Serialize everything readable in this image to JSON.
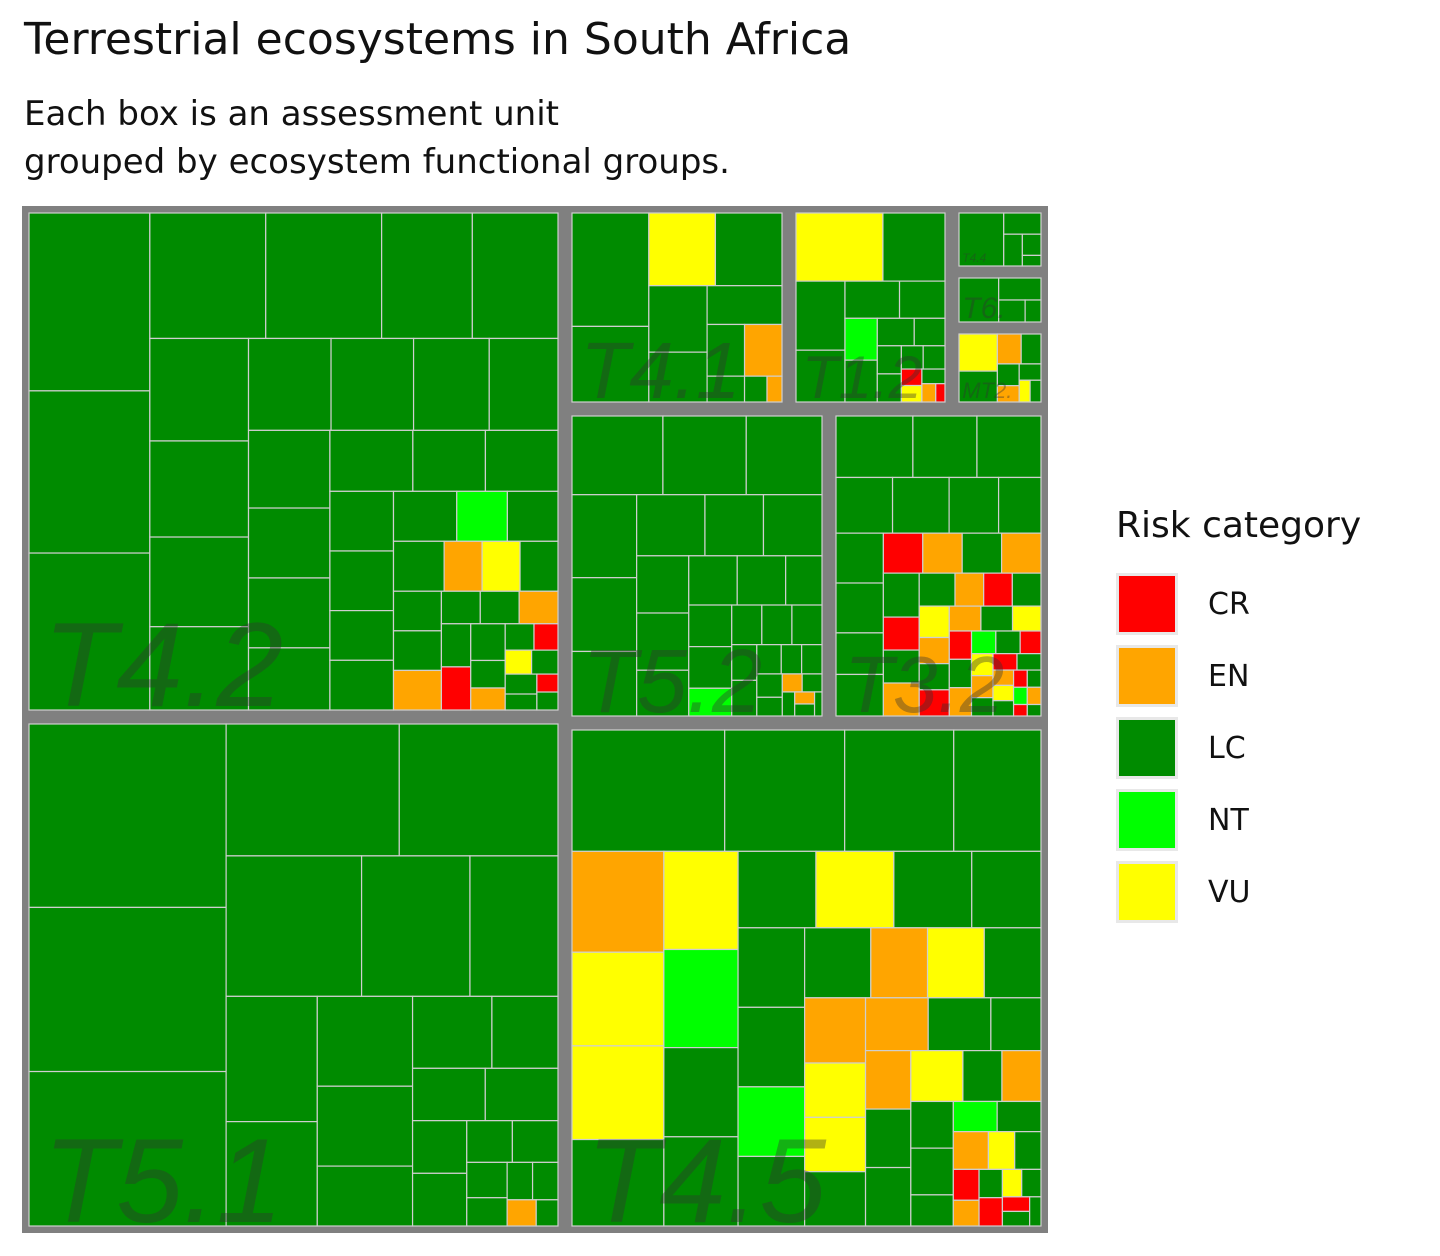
{
  "chart_data": {
    "type": "treemap",
    "title": "Terrestrial ecosystems in South Africa",
    "subtitle": [
      "Each box is an assessment unit",
      "grouped by ecosystem functional groups."
    ],
    "legend": {
      "title": "Risk category",
      "placement": "right",
      "items": [
        {
          "key": "CR",
          "label": "CR",
          "color": "#ff0000"
        },
        {
          "key": "EN",
          "label": "EN",
          "color": "#ffa500"
        },
        {
          "key": "LC",
          "label": "LC",
          "color": "#008b00"
        },
        {
          "key": "NT",
          "label": "NT",
          "color": "#00ff00"
        },
        {
          "key": "VU",
          "label": "VU",
          "color": "#ffff00"
        }
      ]
    },
    "border_color": "#808080",
    "groups": [
      {
        "name": "T4.2",
        "units": [
          [
            "LC",
            34
          ],
          [
            "LC",
            31
          ],
          [
            "LC",
            30
          ],
          [
            "LC",
            23
          ],
          [
            "LC",
            23
          ],
          [
            "LC",
            18
          ],
          [
            "LC",
            17
          ],
          [
            "LC",
            16
          ],
          [
            "LC",
            15
          ],
          [
            "LC",
            14
          ],
          [
            "LC",
            13
          ],
          [
            "LC",
            12
          ],
          [
            "LC",
            12
          ],
          [
            "LC",
            11
          ],
          [
            "LC",
            10
          ],
          [
            "LC",
            10
          ],
          [
            "LC",
            9
          ],
          [
            "LC",
            9
          ],
          [
            "LC",
            8
          ],
          [
            "LC",
            8
          ],
          [
            "LC",
            7
          ],
          [
            "LC",
            7
          ],
          [
            "LC",
            6
          ],
          [
            "LC",
            6
          ],
          [
            "LC",
            5
          ],
          [
            "LC",
            5
          ],
          [
            "LC",
            5
          ],
          [
            "NT",
            4
          ],
          [
            "LC",
            4
          ],
          [
            "LC",
            4
          ],
          [
            "EN",
            3
          ],
          [
            "VU",
            3
          ],
          [
            "LC",
            3
          ],
          [
            "LC",
            3
          ],
          [
            "LC",
            3
          ],
          [
            "EN",
            3
          ],
          [
            "LC",
            2
          ],
          [
            "LC",
            2
          ],
          [
            "EN",
            2
          ],
          [
            "LC",
            2
          ],
          [
            "CR",
            2
          ],
          [
            "LC",
            2
          ],
          [
            "LC",
            1.5
          ],
          [
            "EN",
            1.2
          ],
          [
            "LC",
            1.2
          ],
          [
            "CR",
            1
          ],
          [
            "VU",
            1
          ],
          [
            "LC",
            1
          ],
          [
            "LC",
            1
          ],
          [
            "LC",
            0.8
          ],
          [
            "CR",
            0.6
          ],
          [
            "LC",
            0.6
          ]
        ]
      },
      {
        "name": "T5.1",
        "units": [
          [
            "LC",
            38
          ],
          [
            "LC",
            34
          ],
          [
            "LC",
            32
          ],
          [
            "LC",
            24
          ],
          [
            "LC",
            22
          ],
          [
            "LC",
            20
          ],
          [
            "LC",
            16
          ],
          [
            "LC",
            13
          ],
          [
            "LC",
            12
          ],
          [
            "LC",
            10
          ],
          [
            "LC",
            9
          ],
          [
            "LC",
            8
          ],
          [
            "LC",
            6
          ],
          [
            "LC",
            6
          ],
          [
            "LC",
            5
          ],
          [
            "LC",
            4
          ],
          [
            "LC",
            4
          ],
          [
            "LC",
            3
          ],
          [
            "LC",
            3
          ],
          [
            "LC",
            2
          ],
          [
            "LC",
            2
          ],
          [
            "LC",
            1.5
          ],
          [
            "LC",
            1.2
          ],
          [
            "LC",
            1
          ],
          [
            "LC",
            1
          ],
          [
            "EN",
            0.8
          ],
          [
            "LC",
            0.6
          ]
        ]
      },
      {
        "name": "T4.5",
        "units": [
          [
            "LC",
            28
          ],
          [
            "LC",
            22
          ],
          [
            "LC",
            20
          ],
          [
            "LC",
            16
          ],
          [
            "EN",
            14
          ],
          [
            "VU",
            13
          ],
          [
            "VU",
            13
          ],
          [
            "LC",
            12
          ],
          [
            "VU",
            11
          ],
          [
            "NT",
            11
          ],
          [
            "LC",
            10
          ],
          [
            "LC",
            10
          ],
          [
            "LC",
            9
          ],
          [
            "VU",
            9
          ],
          [
            "LC",
            9
          ],
          [
            "LC",
            8
          ],
          [
            "LC",
            8
          ],
          [
            "LC",
            8
          ],
          [
            "NT",
            7
          ],
          [
            "LC",
            7
          ],
          [
            "LC",
            7
          ],
          [
            "EN",
            6
          ],
          [
            "VU",
            6
          ],
          [
            "LC",
            6
          ],
          [
            "EN",
            6
          ],
          [
            "VU",
            5
          ],
          [
            "VU",
            5
          ],
          [
            "LC",
            5
          ],
          [
            "EN",
            5
          ],
          [
            "LC",
            5
          ],
          [
            "LC",
            4
          ],
          [
            "EN",
            4
          ],
          [
            "LC",
            4
          ],
          [
            "LC",
            4
          ],
          [
            "VU",
            4
          ],
          [
            "LC",
            3
          ],
          [
            "EN",
            3
          ],
          [
            "LC",
            3
          ],
          [
            "LC",
            3
          ],
          [
            "LC",
            2
          ],
          [
            "NT",
            2
          ],
          [
            "LC",
            2
          ],
          [
            "EN",
            2
          ],
          [
            "VU",
            1.5
          ],
          [
            "LC",
            1.5
          ],
          [
            "CR",
            1.2
          ],
          [
            "EN",
            1
          ],
          [
            "LC",
            1
          ],
          [
            "CR",
            1
          ],
          [
            "VU",
            0.8
          ],
          [
            "LC",
            0.8
          ],
          [
            "CR",
            0.6
          ],
          [
            "LC",
            0.6
          ],
          [
            "LC",
            0.5
          ]
        ]
      },
      {
        "name": "T5.2",
        "units": [
          [
            "LC",
            12
          ],
          [
            "LC",
            11
          ],
          [
            "LC",
            10
          ],
          [
            "LC",
            9
          ],
          [
            "LC",
            8
          ],
          [
            "LC",
            7
          ],
          [
            "LC",
            7
          ],
          [
            "LC",
            6
          ],
          [
            "LC",
            6
          ],
          [
            "LC",
            5
          ],
          [
            "LC",
            5
          ],
          [
            "LC",
            4
          ],
          [
            "LC",
            4
          ],
          [
            "LC",
            4
          ],
          [
            "LC",
            3
          ],
          [
            "LC",
            3
          ],
          [
            "LC",
            3
          ],
          [
            "NT",
            2
          ],
          [
            "LC",
            2
          ],
          [
            "LC",
            2
          ],
          [
            "LC",
            2
          ],
          [
            "LC",
            1.5
          ],
          [
            "LC",
            1.5
          ],
          [
            "LC",
            1.2
          ],
          [
            "LC",
            1
          ],
          [
            "LC",
            1
          ],
          [
            "LC",
            1
          ],
          [
            "LC",
            0.8
          ],
          [
            "EN",
            0.6
          ],
          [
            "LC",
            0.6
          ],
          [
            "LC",
            0.5
          ],
          [
            "EN",
            0.4
          ],
          [
            "LC",
            0.4
          ],
          [
            "LC",
            0.3
          ]
        ]
      },
      {
        "name": "T3.2",
        "units": [
          [
            "LC",
            6
          ],
          [
            "LC",
            5
          ],
          [
            "LC",
            5
          ],
          [
            "LC",
            4
          ],
          [
            "LC",
            4
          ],
          [
            "LC",
            3.5
          ],
          [
            "LC",
            3
          ],
          [
            "LC",
            3
          ],
          [
            "LC",
            3
          ],
          [
            "LC",
            2.5
          ],
          [
            "LC",
            2.5
          ],
          [
            "CR",
            2
          ],
          [
            "EN",
            2
          ],
          [
            "LC",
            2
          ],
          [
            "EN",
            2
          ],
          [
            "LC",
            2
          ],
          [
            "CR",
            1.5
          ],
          [
            "LC",
            1.5
          ],
          [
            "EN",
            1.5
          ],
          [
            "LC",
            1.5
          ],
          [
            "EN",
            1.2
          ],
          [
            "CR",
            1.2
          ],
          [
            "LC",
            1.2
          ],
          [
            "VU",
            1.2
          ],
          [
            "EN",
            1
          ],
          [
            "LC",
            1
          ],
          [
            "CR",
            1
          ],
          [
            "EN",
            1
          ],
          [
            "LC",
            1
          ],
          [
            "VU",
            0.9
          ],
          [
            "CR",
            0.8
          ],
          [
            "LC",
            0.8
          ],
          [
            "EN",
            0.8
          ],
          [
            "NT",
            0.7
          ],
          [
            "LC",
            0.7
          ],
          [
            "CR",
            0.6
          ],
          [
            "VU",
            0.6
          ],
          [
            "EN",
            0.6
          ],
          [
            "LC",
            0.5
          ],
          [
            "CR",
            0.5
          ],
          [
            "LC",
            0.5
          ],
          [
            "EN",
            0.4
          ],
          [
            "VU",
            0.4
          ],
          [
            "LC",
            0.4
          ],
          [
            "CR",
            0.3
          ],
          [
            "LC",
            0.3
          ],
          [
            "NT",
            0.3
          ],
          [
            "EN",
            0.3
          ],
          [
            "CR",
            0.2
          ],
          [
            "LC",
            0.2
          ]
        ]
      },
      {
        "name": "T4.1",
        "units": [
          [
            "LC",
            9
          ],
          [
            "LC",
            6
          ],
          [
            "VU",
            5
          ],
          [
            "LC",
            5
          ],
          [
            "LC",
            4
          ],
          [
            "LC",
            3
          ],
          [
            "LC",
            3
          ],
          [
            "LC",
            2
          ],
          [
            "EN",
            2
          ],
          [
            "LC",
            1
          ],
          [
            "LC",
            0.6
          ],
          [
            "EN",
            0.4
          ]
        ]
      },
      {
        "name": "T1.2",
        "units": [
          [
            "VU",
            3.5
          ],
          [
            "LC",
            2.5
          ],
          [
            "LC",
            2
          ],
          [
            "LC",
            1.5
          ],
          [
            "LC",
            1.2
          ],
          [
            "LC",
            1
          ],
          [
            "NT",
            0.8
          ],
          [
            "LC",
            0.8
          ],
          [
            "LC",
            0.6
          ],
          [
            "LC",
            0.5
          ],
          [
            "LC",
            0.4
          ],
          [
            "LC",
            0.4
          ],
          [
            "LC",
            0.3
          ],
          [
            "LC",
            0.3
          ],
          [
            "CR",
            0.2
          ],
          [
            "VU",
            0.2
          ],
          [
            "LC",
            0.2
          ],
          [
            "EN",
            0.15
          ],
          [
            "CR",
            0.1
          ]
        ]
      },
      {
        "name": "MT2.",
        "units": [
          [
            "VU",
            1.2
          ],
          [
            "LC",
            1
          ],
          [
            "EN",
            0.6
          ],
          [
            "LC",
            0.5
          ],
          [
            "LC",
            0.4
          ],
          [
            "EN",
            0.3
          ],
          [
            "LC",
            0.3
          ],
          [
            "VU",
            0.2
          ],
          [
            "LC",
            0.2
          ]
        ]
      },
      {
        "name": "T6.",
        "units": [
          [
            "LC",
            1.5
          ],
          [
            "LC",
            0.8
          ],
          [
            "LC",
            0.5
          ],
          [
            "LC",
            0.3
          ]
        ]
      },
      {
        "name": "T4.4",
        "units": [
          [
            "LC",
            1.2
          ],
          [
            "LC",
            0.4
          ],
          [
            "LC",
            0.3
          ],
          [
            "LC",
            0.2
          ],
          [
            "LC",
            0.1
          ]
        ]
      }
    ]
  }
}
